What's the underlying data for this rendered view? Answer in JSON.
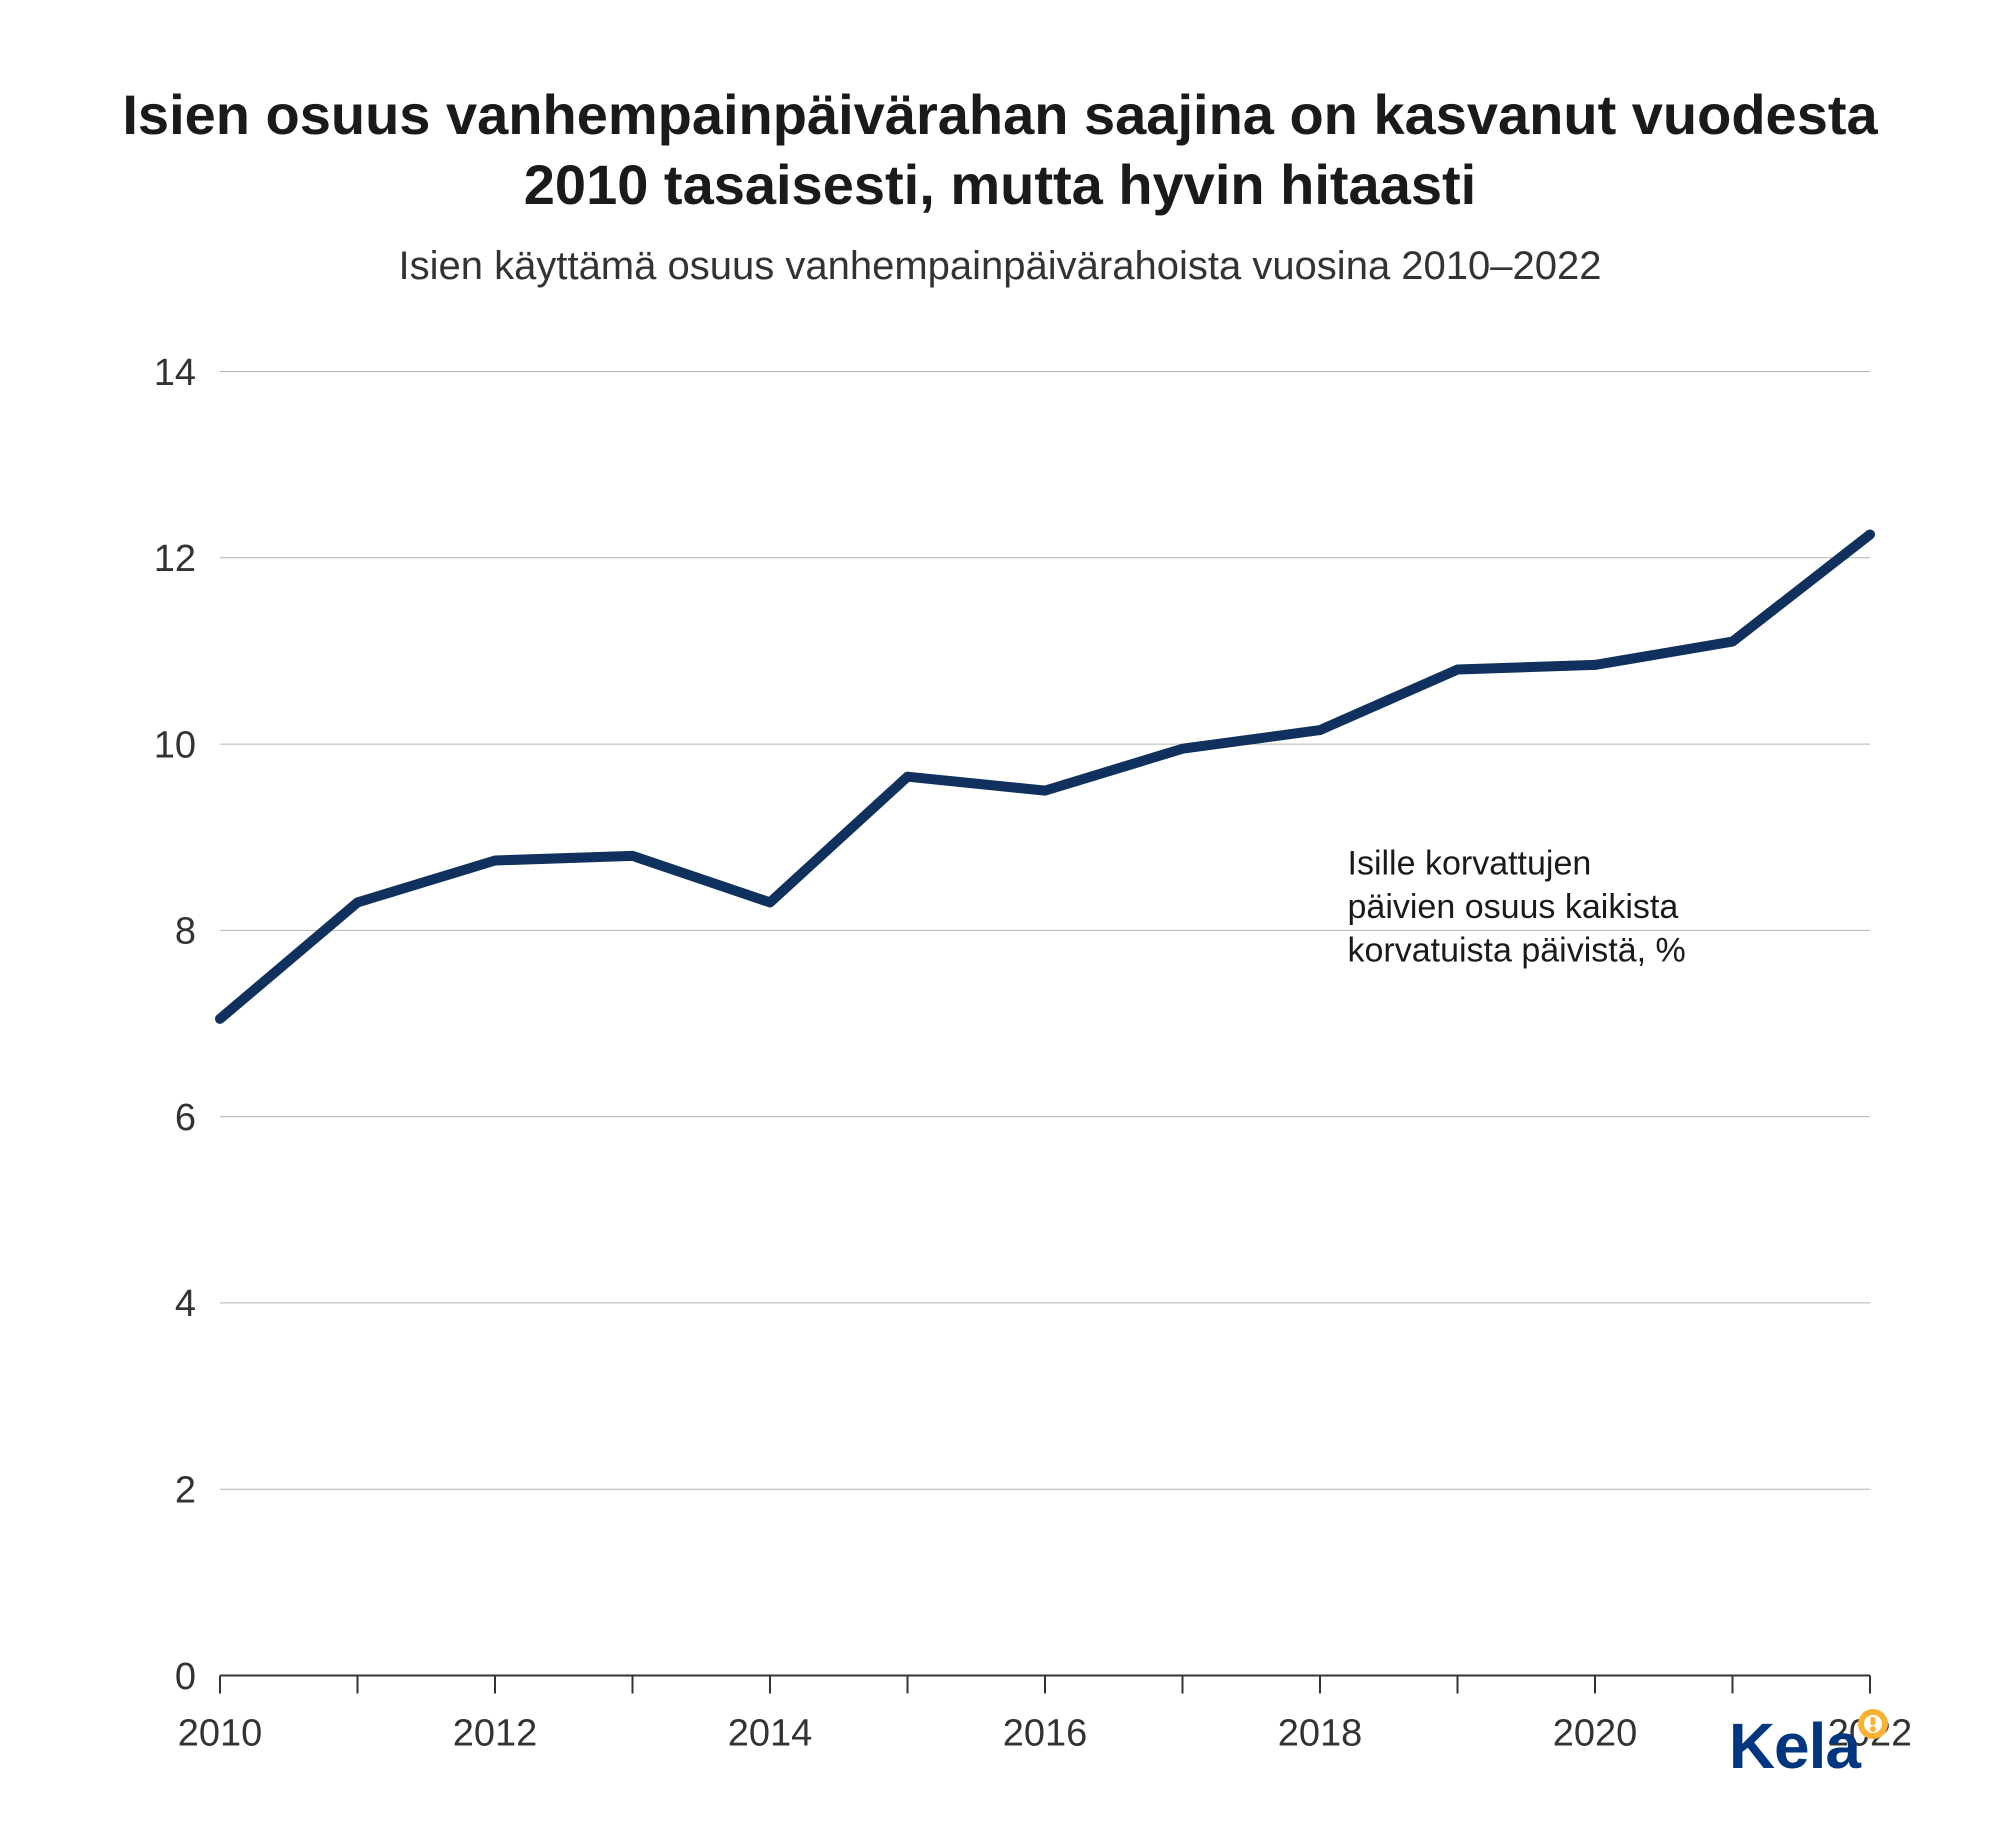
{
  "title": "Isien osuus vanhempainpäivärahan saajina on kasvanut vuodesta 2010 tasaisesti, mutta hyvin hitaasti",
  "subtitle": "Isien käyttämä osuus vanhempainpäivärahoista vuosina 2010–2022",
  "title_fontsize": 56,
  "subtitle_fontsize": 40,
  "chart": {
    "type": "line",
    "y_unit_label": "%",
    "x_values": [
      2010,
      2011,
      2012,
      2013,
      2014,
      2015,
      2016,
      2017,
      2018,
      2019,
      2020,
      2021,
      2022
    ],
    "y_values": [
      7.05,
      8.3,
      8.75,
      8.8,
      8.3,
      9.65,
      9.5,
      9.95,
      10.15,
      10.8,
      10.85,
      11.1,
      12.25
    ],
    "xlim": [
      2010,
      2022
    ],
    "ylim": [
      0,
      14
    ],
    "ytick_step": 2,
    "yticks": [
      0,
      2,
      4,
      6,
      8,
      10,
      12,
      14
    ],
    "xticks_labeled": [
      2010,
      2012,
      2014,
      2016,
      2018,
      2020,
      2022
    ],
    "xticks_minor": [
      2011,
      2013,
      2015,
      2017,
      2019,
      2021
    ],
    "line_color": "#10305d",
    "line_width": 10,
    "grid_color": "#b5b5b5",
    "axis_color": "#333333",
    "background_color": "#ffffff",
    "tick_label_color": "#333333",
    "tick_label_fontsize": 38,
    "tick_length": 18,
    "annotation": {
      "text_lines": [
        "Isille korvattujen",
        "päivien osuus kaikista",
        "korvatuista päivistä, %"
      ],
      "fontsize": 34,
      "color": "#1a1a1a",
      "anchor_x": 2018.2,
      "anchor_y_top": 8.6
    }
  },
  "logo": {
    "text": "Kela",
    "text_color": "#003580",
    "dot_color": "#f9b233",
    "fontsize": 64
  }
}
